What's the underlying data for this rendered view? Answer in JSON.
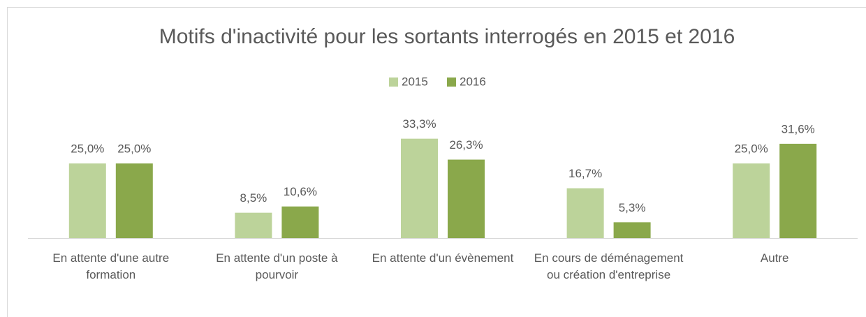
{
  "chart_data": {
    "type": "bar",
    "title": "Motifs d'inactivité pour les sortants interrogés en 2015 et 2016",
    "categories": [
      "En attente d'une autre formation",
      "En attente d'un poste à pourvoir",
      "En attente d'un évènement",
      "En cours de déménagement ou création d'entreprise",
      "Autre"
    ],
    "series": [
      {
        "name": "2015",
        "color": "#bcd39a",
        "values": [
          25.0,
          8.5,
          33.3,
          16.7,
          25.0
        ],
        "value_labels": [
          "25,0%",
          "8,5%",
          "33,3%",
          "16,7%",
          "25,0%"
        ]
      },
      {
        "name": "2016",
        "color": "#8aa84b",
        "values": [
          25.0,
          10.6,
          26.3,
          5.3,
          31.6
        ],
        "value_labels": [
          "25,0%",
          "10,6%",
          "26,3%",
          "5,3%",
          "31,6%"
        ]
      }
    ],
    "ylim": [
      0,
      40
    ],
    "legend": "top"
  }
}
